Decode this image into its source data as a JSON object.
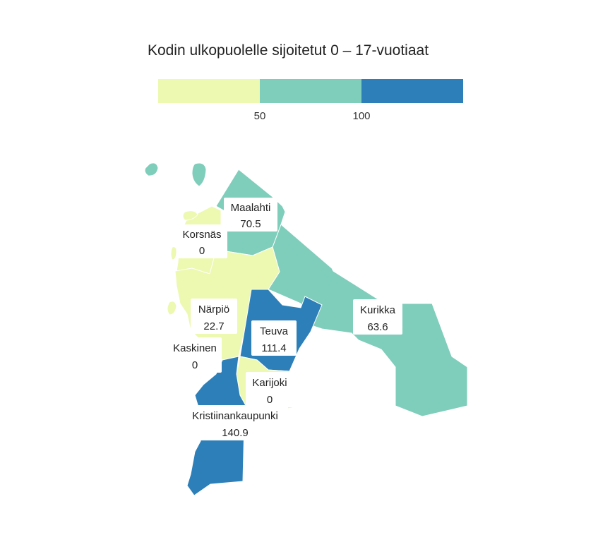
{
  "title": "Kodin ulkopuolelle sijoitetut 0 – 17-vuotiaat",
  "legend": {
    "breaks": [
      50,
      100
    ],
    "tick_labels": [
      "50",
      "100"
    ],
    "colors": [
      "#edf8b1",
      "#7fcdbb",
      "#2c7fb8"
    ]
  },
  "regions": [
    {
      "name": "Maalahti",
      "value": 70.5,
      "value_label": "70.5"
    },
    {
      "name": "Korsnäs",
      "value": 0,
      "value_label": "0"
    },
    {
      "name": "Närpiö",
      "value": 22.7,
      "value_label": "22.7"
    },
    {
      "name": "Teuva",
      "value": 111.4,
      "value_label": "111.4"
    },
    {
      "name": "Kurikka",
      "value": 63.6,
      "value_label": "63.6"
    },
    {
      "name": "Kaskinen",
      "value": 0,
      "value_label": "0"
    },
    {
      "name": "Karijoki",
      "value": 0,
      "value_label": "0"
    },
    {
      "name": "Kristiinankaupunki",
      "value": 140.9,
      "value_label": "140.9"
    }
  ]
}
